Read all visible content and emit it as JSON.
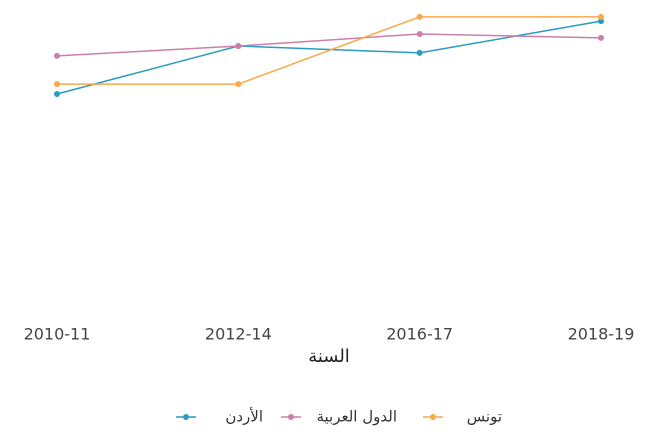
{
  "chart_data": {
    "type": "line",
    "x_label": "السنة",
    "categories": [
      "2010-11",
      "2012-14",
      "2016-17",
      "2018-19"
    ],
    "series": [
      {
        "name": "الأردن",
        "color": "#2b9bbf",
        "values": [
          72.0,
          88.0,
          85.7,
          96.3
        ]
      },
      {
        "name": "الدول العربية",
        "color": "#cc7fa8",
        "values": [
          84.7,
          88.0,
          92.0,
          90.7
        ]
      },
      {
        "name": "تونس",
        "color": "#f9a94b",
        "values": [
          75.3,
          75.3,
          97.7,
          97.7
        ]
      }
    ],
    "ylim": [
      0,
      100
    ]
  }
}
